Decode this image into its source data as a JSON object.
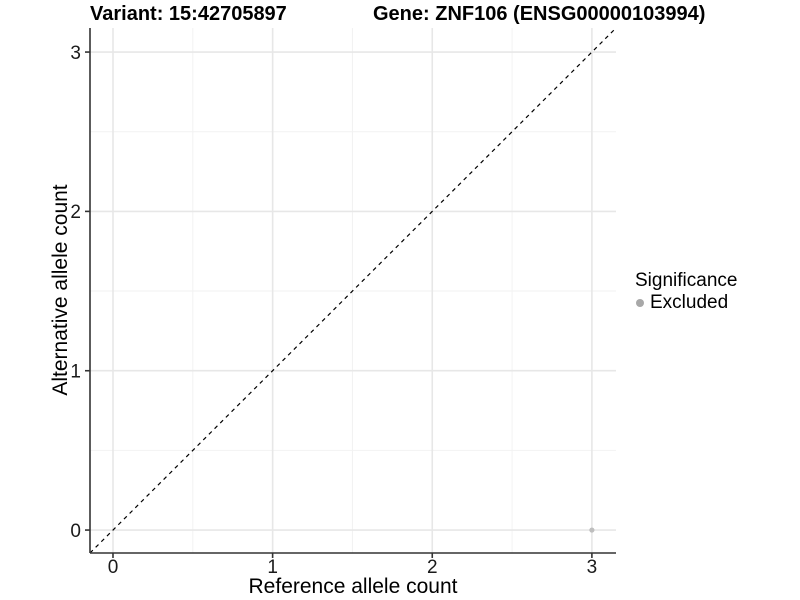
{
  "chart_data": {
    "type": "scatter",
    "title_left": "Variant: 15:42705897",
    "title_right": "Gene: ZNF106 (ENSG00000103994)",
    "xlabel": "Reference allele count",
    "ylabel": "Alternative allele count",
    "xlim": [
      -0.144,
      3.151
    ],
    "ylim": [
      -0.144,
      3.151
    ],
    "xticks": [
      0,
      1,
      2,
      3
    ],
    "yticks": [
      0,
      1,
      2,
      3
    ],
    "xminor": [
      0.5,
      1.5,
      2.5
    ],
    "yminor": [
      0.5,
      1.5,
      2.5
    ],
    "grid": true,
    "series": [
      {
        "name": "Excluded",
        "color": "#BEBEBE",
        "points": [
          {
            "x": 3,
            "y": 0
          }
        ]
      }
    ],
    "reference_line": {
      "type": "y=x",
      "style": "dashed",
      "color": "#000000"
    },
    "legend": {
      "title": "Significance",
      "position": "right",
      "items": [
        {
          "label": "Excluded",
          "color": "#A8A8A8"
        }
      ]
    },
    "colors": {
      "major_grid": "#E7E7E7",
      "minor_grid": "#F2F2F2",
      "axis_line": "#333333"
    }
  }
}
